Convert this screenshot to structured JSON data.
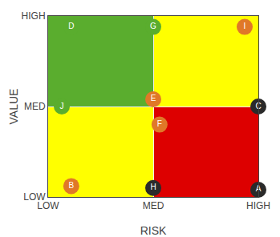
{
  "chart_data": {
    "type": "scatter",
    "x_label": "RISK",
    "y_label": "VALUE",
    "xlim": [
      0,
      2
    ],
    "ylim": [
      0,
      2
    ],
    "xticks": [
      {
        "value": 0,
        "label": "LOW"
      },
      {
        "value": 1,
        "label": "MED"
      },
      {
        "value": 2,
        "label": "HIGH"
      }
    ],
    "yticks": [
      {
        "value": 0,
        "label": "LOW"
      },
      {
        "value": 1,
        "label": "MED"
      },
      {
        "value": 2,
        "label": "HIGH"
      }
    ],
    "grid": true,
    "regions": [
      {
        "x": 0,
        "y": 1,
        "w": 1,
        "h": 1,
        "color": "#5aad2e"
      },
      {
        "x": 1,
        "y": 1,
        "w": 1,
        "h": 1,
        "color": "#ffff00"
      },
      {
        "x": 0,
        "y": 0,
        "w": 1,
        "h": 1,
        "color": "#ffff00"
      },
      {
        "x": 1,
        "y": 0,
        "w": 1,
        "h": 1,
        "color": "#dd0000"
      }
    ],
    "labels": [
      "A",
      "B",
      "C",
      "D",
      "E",
      "F",
      "G",
      "H",
      "I",
      "J"
    ],
    "x": [
      2.0,
      0.22,
      2.0,
      0.22,
      1.0,
      1.06,
      1.0,
      1.0,
      1.87,
      0.13
    ],
    "y": [
      0.08,
      0.12,
      1.0,
      1.88,
      1.08,
      0.8,
      1.88,
      0.1,
      1.88,
      1.0
    ],
    "colors": [
      "#2a2a2a",
      "#e07828",
      "#2a2a2a",
      "#5aad2e",
      "#e07828",
      "#e07828",
      "#5aad2e",
      "#2a2a2a",
      "#e07828",
      "#5aad2e"
    ]
  }
}
